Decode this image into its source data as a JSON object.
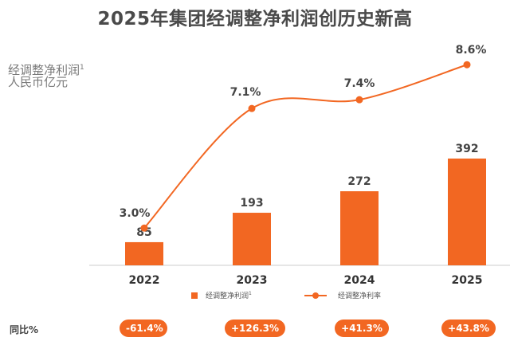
{
  "page": {
    "title": "2025年集团经调整净利润创历史新高",
    "unit_line1": "经调整净利润",
    "unit_line1_sup": "1",
    "unit_line2": "人民币亿元",
    "yoy_label": "同比%"
  },
  "legend": {
    "bar_label": "经调整净利润",
    "bar_label_sup": "1",
    "line_label": "经调整净利率"
  },
  "colors": {
    "accent": "#f26722",
    "axis": "#cccccc",
    "text": "#444444"
  },
  "yoy": [
    "-61.4%",
    "+126.3%",
    "+41.3%",
    "+43.8%"
  ],
  "chart_data": {
    "type": "bar",
    "title": "2025年集团经调整净利润创历史新高",
    "categories": [
      "2022",
      "2023",
      "2024",
      "2025"
    ],
    "series": [
      {
        "name": "经调整净利润",
        "type": "bar",
        "values": [
          85,
          193,
          272,
          392
        ],
        "labels": [
          "85",
          "193",
          "272",
          "392"
        ]
      },
      {
        "name": "经调整净利率",
        "type": "line",
        "values": [
          3.0,
          7.1,
          7.4,
          8.6
        ],
        "labels": [
          "3.0%",
          "7.1%",
          "7.4%",
          "8.6%"
        ]
      }
    ],
    "ylabel": "经调整净利润 人民币亿元",
    "grid": false,
    "legend_position": "bottom"
  }
}
